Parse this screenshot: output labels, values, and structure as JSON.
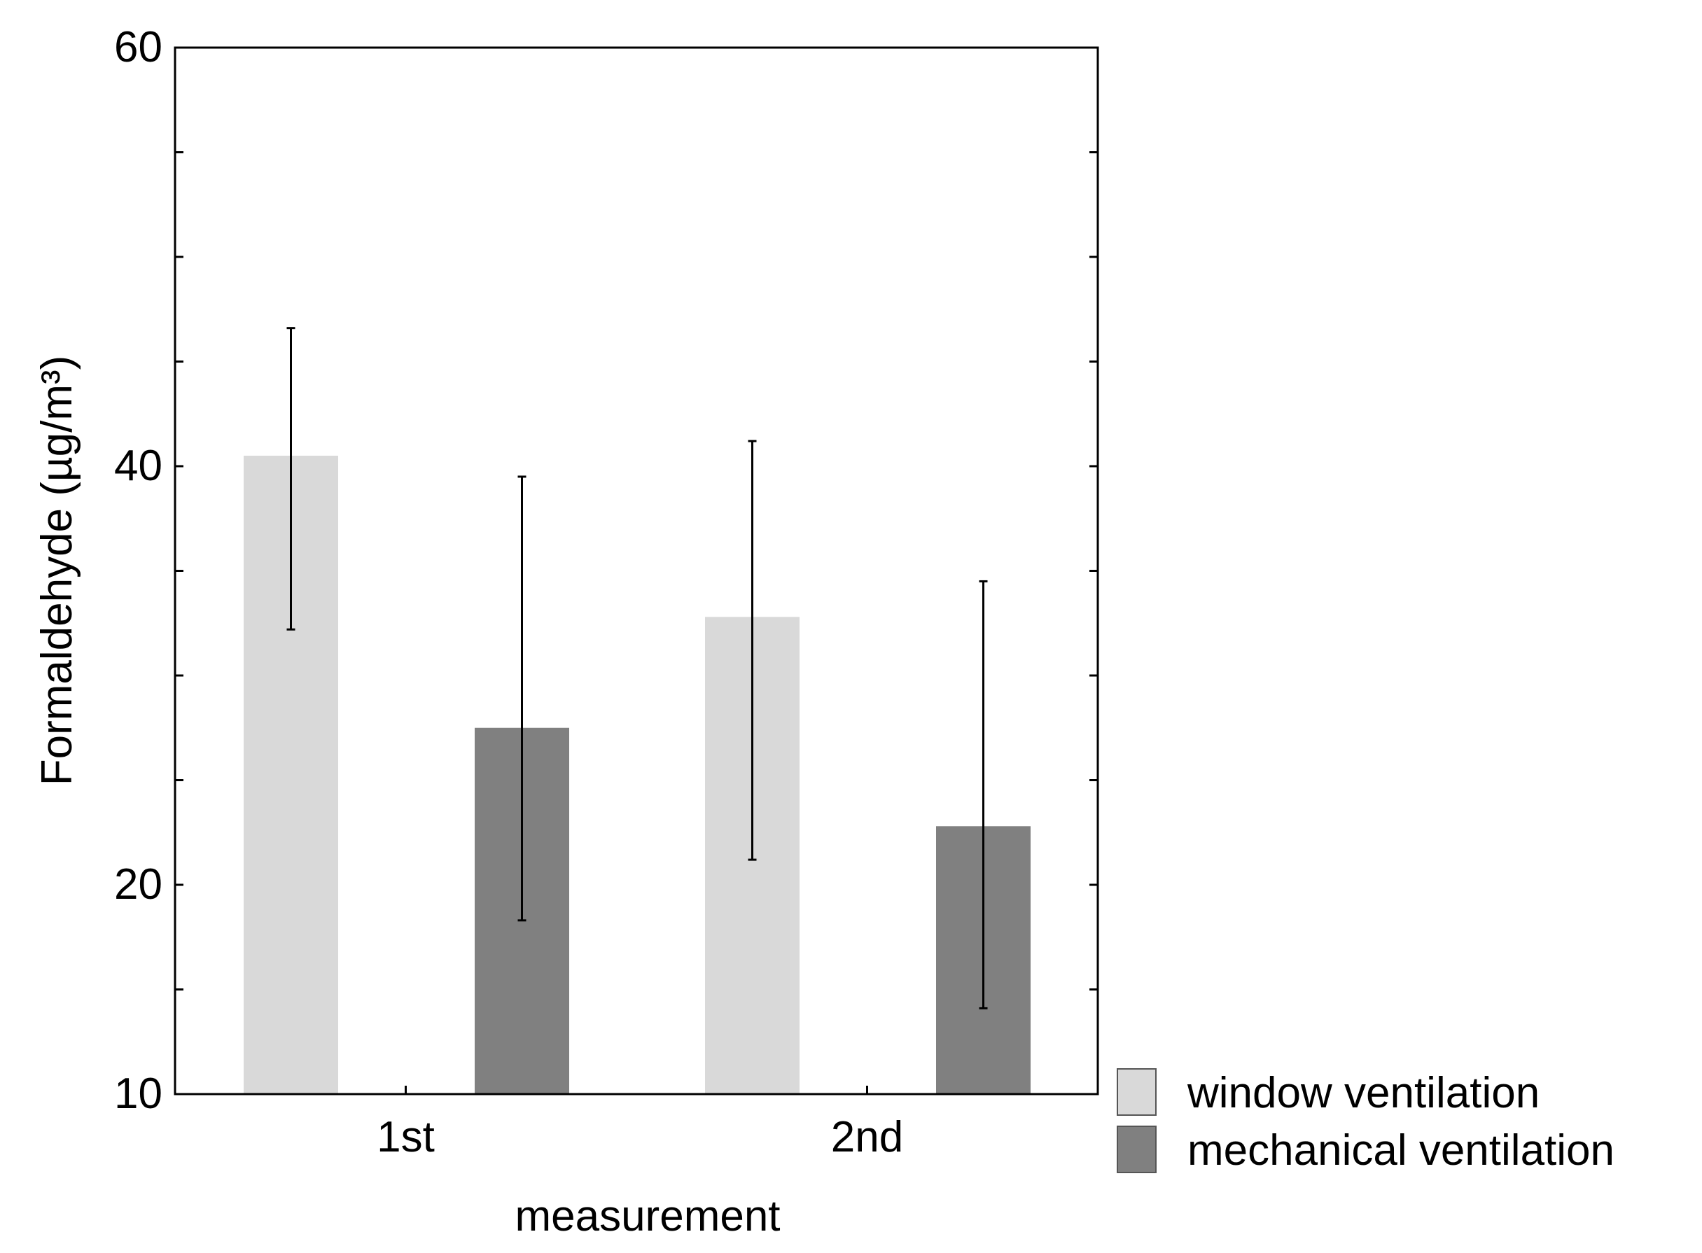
{
  "chart_data": {
    "type": "bar",
    "title": "",
    "xlabel": "measurement",
    "ylabel": "Formaldehyde (µg/m³)",
    "ylim": [
      10,
      60
    ],
    "yticks": [
      10,
      20,
      40,
      60
    ],
    "categories": [
      "1st",
      "2nd"
    ],
    "series": [
      {
        "name": "window ventilation",
        "color": "#d9d9d9",
        "values": [
          40.5,
          32.8
        ],
        "error_low": [
          32.2,
          21.2
        ],
        "error_high": [
          46.6,
          41.2
        ]
      },
      {
        "name": "mechanical ventilation",
        "color": "#808080",
        "values": [
          27.5,
          22.8
        ],
        "error_low": [
          18.3,
          14.1
        ],
        "error_high": [
          39.5,
          34.5
        ]
      }
    ],
    "grid": false,
    "legend": "bottom-right, outside plot"
  }
}
